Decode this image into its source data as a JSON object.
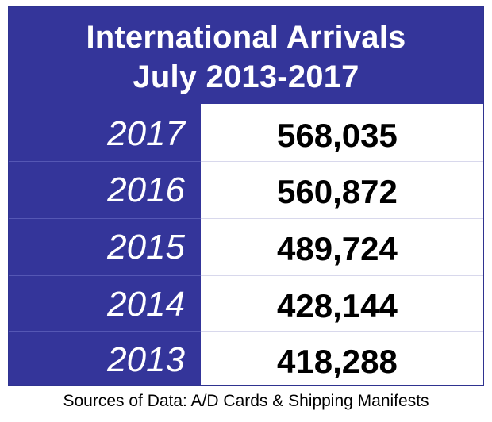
{
  "chart_data": {
    "type": "table",
    "title_lines": [
      "International Arrivals",
      "July 2013-2017"
    ],
    "rows": [
      {
        "year": "2017",
        "value": "568,035"
      },
      {
        "year": "2016",
        "value": "560,872"
      },
      {
        "year": "2015",
        "value": "489,724"
      },
      {
        "year": "2014",
        "value": "428,144"
      },
      {
        "year": "2013",
        "value": "418,288"
      }
    ],
    "footnote": "Sources of Data: A/D Cards & Shipping Manifests"
  },
  "colors": {
    "header_background": "#34359a",
    "header_text": "#ffffff",
    "value_text": "#000000"
  }
}
